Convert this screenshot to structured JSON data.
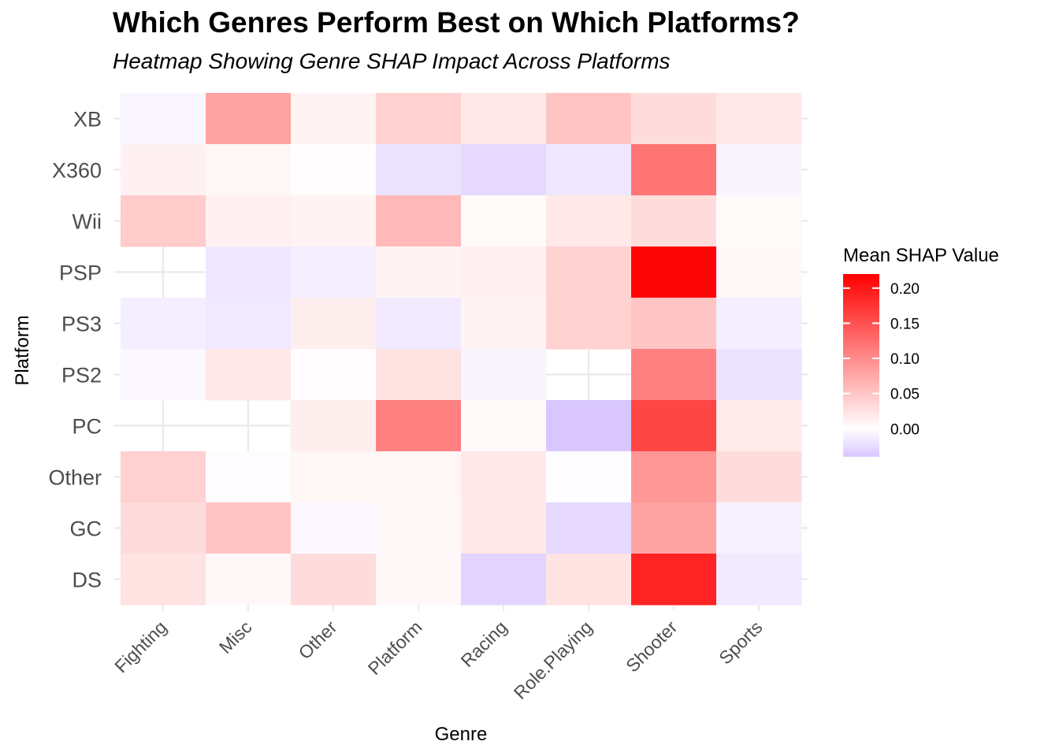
{
  "chart_data": {
    "type": "heatmap",
    "title": "Which Genres Perform Best on Which Platforms?",
    "subtitle": "Heatmap Showing Genre SHAP Impact Across Platforms",
    "xlabel": "Genre",
    "ylabel": "Platform",
    "x_categories": [
      "Fighting",
      "Misc",
      "Other",
      "Platform",
      "Racing",
      "Role.Playing",
      "Shooter",
      "Sports"
    ],
    "y_categories": [
      "DS",
      "GC",
      "Other",
      "PC",
      "PS2",
      "PS3",
      "PSP",
      "Wii",
      "X360",
      "XB"
    ],
    "values": [
      {
        "platform": "XB",
        "values": [
          -0.006,
          0.08,
          0.01,
          0.04,
          0.02,
          0.05,
          0.03,
          0.02
        ]
      },
      {
        "platform": "X360",
        "values": [
          0.012,
          0.008,
          0.002,
          -0.02,
          -0.027,
          -0.017,
          0.12,
          -0.007
        ]
      },
      {
        "platform": "Wii",
        "values": [
          0.045,
          0.012,
          0.01,
          0.06,
          0.004,
          0.02,
          0.03,
          0.004
        ]
      },
      {
        "platform": "PSP",
        "values": [
          null,
          -0.017,
          -0.012,
          0.01,
          0.012,
          0.04,
          0.215,
          0.006
        ]
      },
      {
        "platform": "PS3",
        "values": [
          -0.012,
          -0.015,
          0.015,
          -0.015,
          0.01,
          0.04,
          0.05,
          -0.012
        ]
      },
      {
        "platform": "PS2",
        "values": [
          -0.004,
          0.02,
          0.002,
          0.025,
          -0.007,
          null,
          0.11,
          -0.02
        ]
      },
      {
        "platform": "PC",
        "values": [
          null,
          null,
          0.015,
          0.11,
          0.005,
          -0.04,
          0.16,
          0.018
        ]
      },
      {
        "platform": "Other",
        "values": [
          0.04,
          -0.002,
          0.008,
          0.008,
          0.02,
          -0.002,
          0.09,
          0.03
        ]
      },
      {
        "platform": "GC",
        "values": [
          0.03,
          0.05,
          -0.004,
          0.006,
          0.02,
          -0.027,
          0.08,
          -0.01
        ]
      },
      {
        "platform": "DS",
        "values": [
          0.025,
          0.006,
          0.03,
          0.006,
          -0.03,
          0.025,
          0.19,
          -0.015
        ]
      }
    ],
    "legend": {
      "title": "Mean SHAP Value",
      "ticks": [
        "0.00",
        "0.05",
        "0.10",
        "0.15",
        "0.20"
      ],
      "tick_values": [
        0,
        0.05,
        0.1,
        0.15,
        0.2
      ],
      "range": [
        -0.04,
        0.22
      ],
      "placement": "right"
    },
    "colors": {
      "low": "#d9c6ff",
      "mid": "#ffffff",
      "high": "#ff0000",
      "grid": "#ebebeb",
      "tick_text": "#4d4d4d"
    },
    "grid": true
  }
}
